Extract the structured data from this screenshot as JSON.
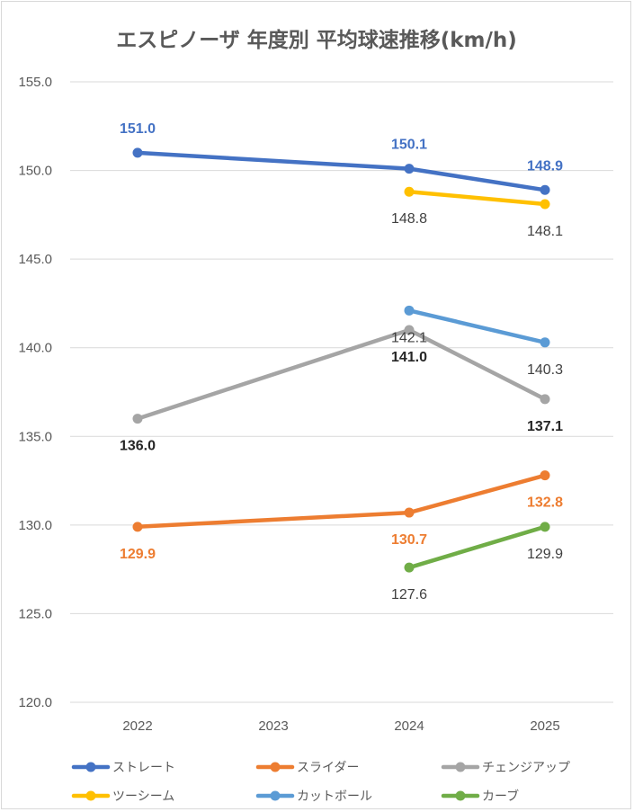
{
  "chart_data": {
    "type": "line",
    "title": "エスピノーザ 年度別 平均球速推移(km/h)",
    "xlabel": "",
    "ylabel": "",
    "categories": [
      "2022",
      "2023",
      "2024",
      "2025"
    ],
    "ylim": [
      120.0,
      155.0
    ],
    "ytick_step": 5,
    "yticks": [
      "120.0",
      "125.0",
      "130.0",
      "135.0",
      "140.0",
      "145.0",
      "150.0",
      "155.0"
    ],
    "grid": true,
    "legend_position": "bottom",
    "series": [
      {
        "name": "ストレート",
        "color": "#4472C4",
        "values": [
          151.0,
          null,
          150.1,
          148.9
        ],
        "labels": [
          "151.0",
          null,
          "150.1",
          "148.9"
        ],
        "label_pos": [
          "above",
          null,
          "above",
          "above"
        ],
        "label_color": "#4472C4",
        "label_bold": true
      },
      {
        "name": "スライダー",
        "color": "#ED7D31",
        "values": [
          129.9,
          null,
          130.7,
          132.8
        ],
        "labels": [
          "129.9",
          null,
          "130.7",
          "132.8"
        ],
        "label_pos": [
          "below",
          null,
          "below",
          "below"
        ],
        "label_color": "#ED7D31",
        "label_bold": true
      },
      {
        "name": "チェンジアップ",
        "color": "#A5A5A5",
        "values": [
          136.0,
          null,
          141.0,
          137.1
        ],
        "labels": [
          "136.0",
          null,
          "141.0",
          "137.1"
        ],
        "label_pos": [
          "below",
          null,
          "below",
          "below"
        ],
        "label_color": "#262626",
        "label_bold": true
      },
      {
        "name": "ツーシーム",
        "color": "#FFC000",
        "values": [
          null,
          null,
          148.8,
          148.1
        ],
        "labels": [
          null,
          null,
          "148.8",
          "148.1"
        ],
        "label_pos": [
          null,
          null,
          "below",
          "below"
        ],
        "label_color": "#404040",
        "label_bold": false
      },
      {
        "name": "カットボール",
        "color": "#5B9BD5",
        "values": [
          null,
          null,
          142.1,
          140.3
        ],
        "labels": [
          null,
          null,
          "142.1",
          "140.3"
        ],
        "label_pos": [
          null,
          null,
          "below",
          "below"
        ],
        "label_color": "#404040",
        "label_bold": false
      },
      {
        "name": "カーブ",
        "color": "#70AD47",
        "values": [
          null,
          null,
          127.6,
          129.9
        ],
        "labels": [
          null,
          null,
          "127.6",
          "129.9"
        ],
        "label_pos": [
          null,
          null,
          "below",
          "below"
        ],
        "label_color": "#404040",
        "label_bold": false
      }
    ]
  }
}
